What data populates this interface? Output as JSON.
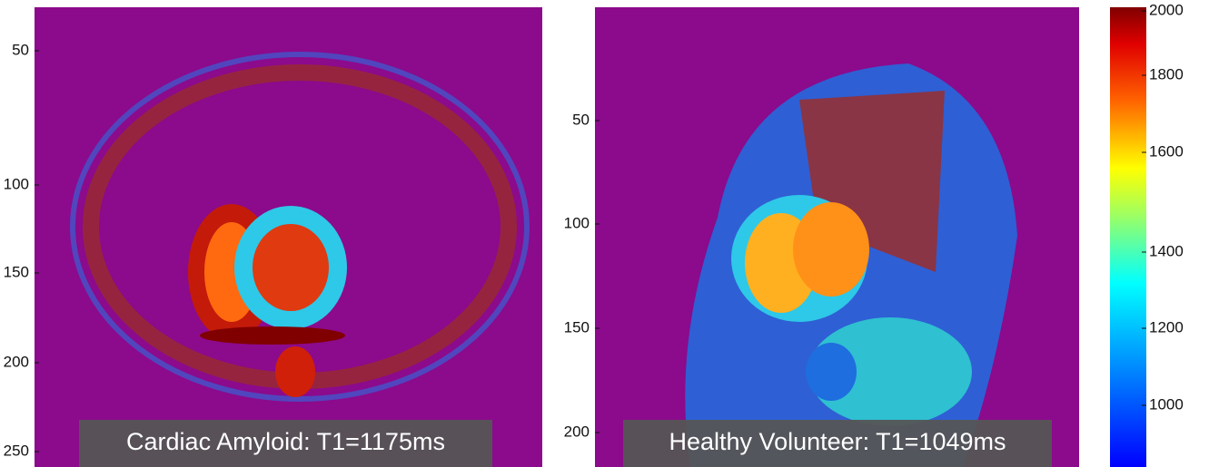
{
  "panels": [
    {
      "yticks": [
        "50",
        "100",
        "150",
        "200",
        "250"
      ],
      "caption": "Cardiac Amyloid: T1=1175ms"
    },
    {
      "yticks": [
        "50",
        "100",
        "150",
        "200"
      ],
      "caption": "Healthy Volunteer: T1=1049ms"
    }
  ],
  "colorbar": {
    "ticks": [
      "2000",
      "1800",
      "1600",
      "1400",
      "1200",
      "1000"
    ]
  }
}
